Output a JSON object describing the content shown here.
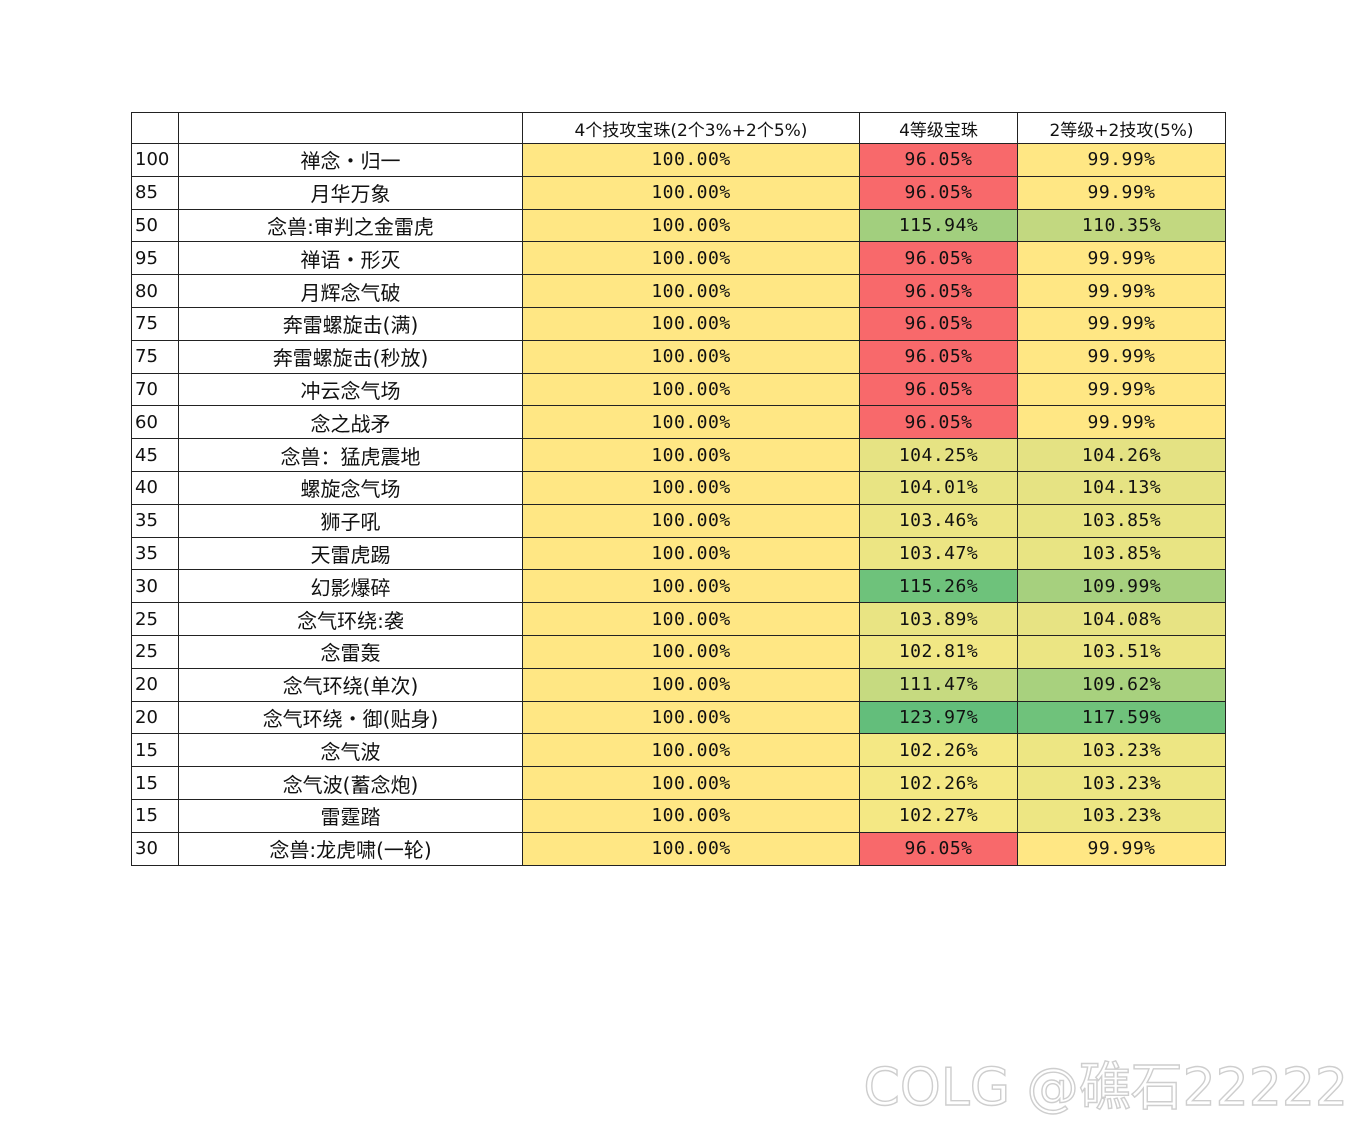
{
  "colors": {
    "yellow": "#FFE784",
    "red": "#F8696B",
    "light_yellow_green": "#E7E483",
    "light_green": "#C6DA80",
    "mid_green": "#A2CF7E",
    "green": "#6EC27B",
    "white": "#FFFFFF"
  },
  "table": {
    "header": {
      "level": "",
      "skill": "",
      "col1": "4个技攻宝珠(2个3%+2个5%)",
      "col2": "4等级宝珠",
      "col3": "2等级+2技攻(5%)"
    },
    "rows": [
      {
        "level": "100",
        "skill": "禅念・归一",
        "col1": "100.00%",
        "col2": "96.05%",
        "col3": "99.99%",
        "col2_color": "#F8696B",
        "col3_color": "#FFE784"
      },
      {
        "level": "85",
        "skill": "月华万象",
        "col1": "100.00%",
        "col2": "96.05%",
        "col3": "99.99%",
        "col2_color": "#F8696B",
        "col3_color": "#FFE784"
      },
      {
        "level": "50",
        "skill": "念兽:审判之金雷虎",
        "col1": "100.00%",
        "col2": "115.94%",
        "col3": "110.35%",
        "col2_color": "#A2CF7E",
        "col3_color": "#C2D880"
      },
      {
        "level": "95",
        "skill": "禅语・形灭",
        "col1": "100.00%",
        "col2": "96.05%",
        "col3": "99.99%",
        "col2_color": "#F8696B",
        "col3_color": "#FFE784"
      },
      {
        "level": "80",
        "skill": "月辉念气破",
        "col1": "100.00%",
        "col2": "96.05%",
        "col3": "99.99%",
        "col2_color": "#F8696B",
        "col3_color": "#FFE784"
      },
      {
        "level": "75",
        "skill": "奔雷螺旋击(满)",
        "col1": "100.00%",
        "col2": "96.05%",
        "col3": "99.99%",
        "col2_color": "#F8696B",
        "col3_color": "#FFE784"
      },
      {
        "level": "75",
        "skill": "奔雷螺旋击(秒放)",
        "col1": "100.00%",
        "col2": "96.05%",
        "col3": "99.99%",
        "col2_color": "#F8696B",
        "col3_color": "#FFE784"
      },
      {
        "level": "70",
        "skill": "冲云念气场",
        "col1": "100.00%",
        "col2": "96.05%",
        "col3": "99.99%",
        "col2_color": "#F8696B",
        "col3_color": "#FFE784"
      },
      {
        "level": "60",
        "skill": "念之战矛",
        "col1": "100.00%",
        "col2": "96.05%",
        "col3": "99.99%",
        "col2_color": "#F8696B",
        "col3_color": "#FFE784"
      },
      {
        "level": "45",
        "skill": "念兽：猛虎震地",
        "col1": "100.00%",
        "col2": "104.25%",
        "col3": "104.26%",
        "col2_color": "#E6E383",
        "col3_color": "#E4E283"
      },
      {
        "level": "40",
        "skill": "螺旋念气场",
        "col1": "100.00%",
        "col2": "104.01%",
        "col3": "104.13%",
        "col2_color": "#E8E483",
        "col3_color": "#E6E383"
      },
      {
        "level": "35",
        "skill": "狮子吼",
        "col1": "100.00%",
        "col2": "103.46%",
        "col3": "103.85%",
        "col2_color": "#ECE583",
        "col3_color": "#E8E483"
      },
      {
        "level": "35",
        "skill": "天雷虎踢",
        "col1": "100.00%",
        "col2": "103.47%",
        "col3": "103.85%",
        "col2_color": "#ECE583",
        "col3_color": "#E8E483"
      },
      {
        "level": "30",
        "skill": "幻影爆碎",
        "col1": "100.00%",
        "col2": "115.26%",
        "col3": "109.99%",
        "col2_color": "#6EC27B",
        "col3_color": "#A6D07E"
      },
      {
        "level": "25",
        "skill": "念气环绕:袭",
        "col1": "100.00%",
        "col2": "103.89%",
        "col3": "104.08%",
        "col2_color": "#E9E483",
        "col3_color": "#E7E383"
      },
      {
        "level": "25",
        "skill": "念雷轰",
        "col1": "100.00%",
        "col2": "102.81%",
        "col3": "103.51%",
        "col2_color": "#F1E784",
        "col3_color": "#EBE583"
      },
      {
        "level": "20",
        "skill": "念气环绕(单次)",
        "col1": "100.00%",
        "col2": "111.47%",
        "col3": "109.62%",
        "col2_color": "#C6DA80",
        "col3_color": "#A8D17E"
      },
      {
        "level": "20",
        "skill": "念气环绕・御(贴身)",
        "col1": "100.00%",
        "col2": "123.97%",
        "col3": "117.59%",
        "col2_color": "#63BE7B",
        "col3_color": "#6FC27B"
      },
      {
        "level": "15",
        "skill": "念气波",
        "col1": "100.00%",
        "col2": "102.26%",
        "col3": "103.23%",
        "col2_color": "#F4E884",
        "col3_color": "#EDE683"
      },
      {
        "level": "15",
        "skill": "念气波(蓄念炮)",
        "col1": "100.00%",
        "col2": "102.26%",
        "col3": "103.23%",
        "col2_color": "#F4E884",
        "col3_color": "#EDE683"
      },
      {
        "level": "15",
        "skill": "雷霆踏",
        "col1": "100.00%",
        "col2": "102.27%",
        "col3": "103.23%",
        "col2_color": "#F4E884",
        "col3_color": "#EDE683"
      },
      {
        "level": "30",
        "skill": "念兽:龙虎啸(一轮)",
        "col1": "100.00%",
        "col2": "96.05%",
        "col3": "99.99%",
        "col2_color": "#F8696B",
        "col3_color": "#FFE784"
      }
    ]
  },
  "watermark": "COLG @礁石22222"
}
